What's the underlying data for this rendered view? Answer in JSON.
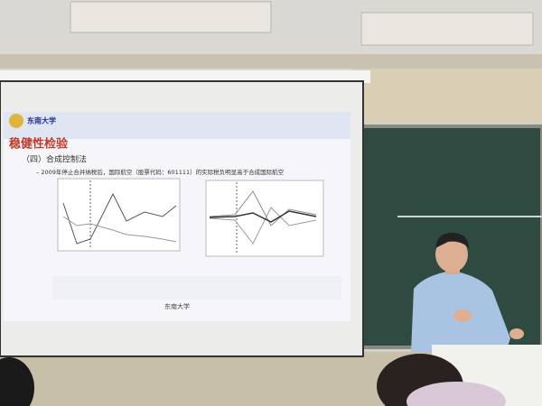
{
  "slide": {
    "logo": "东南大学",
    "title": "稳健性检验",
    "bullet": "（四）合成控制法",
    "sub_bullet": "– 2009年停止合并纳税后，国际航空（股票代码：601111）的实际税负明显高于合成国际航空",
    "footer": "东南大学"
  }
}
